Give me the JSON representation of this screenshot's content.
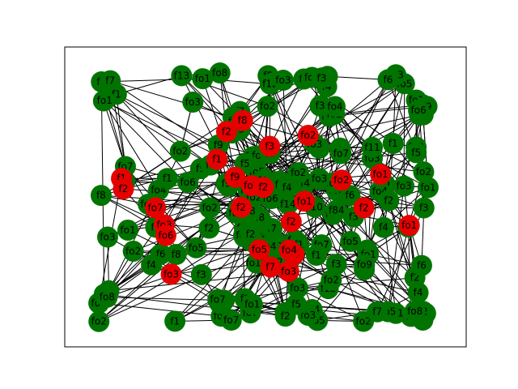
{
  "graph": {
    "node_colors": {
      "green": "#007300",
      "red": "#e60000"
    },
    "edge_color": "#000000",
    "frame_color": "#000000",
    "red_labels": [
      "f2",
      "fo2",
      "fo3",
      "f1",
      "f3",
      "fo2",
      "f2",
      "f7",
      "fo1",
      "f4",
      "fo6",
      "f2",
      "fo1",
      "f9",
      "fo3",
      "f2",
      "fo2",
      "fo5",
      "f1",
      "fo7",
      "fo4",
      "f2",
      "fo3",
      "f8",
      "f2",
      "fo1"
    ],
    "green_labels": [
      "f4",
      "f6",
      "f23",
      "f8",
      "f10",
      "fo7",
      "f1",
      "fo2",
      "f7",
      "fo5",
      "fo2",
      "fo1",
      "f24",
      "f13",
      "fo3",
      "fo8",
      "f9",
      "fo7",
      "f2",
      "f1",
      "f7",
      "fo6",
      "fo3",
      "f2",
      "f3",
      "fo2",
      "f1",
      "fo4",
      "f4",
      "f5",
      "fo5",
      "f9",
      "fo7",
      "fo2",
      "fo1",
      "f2",
      "f5",
      "f1",
      "fo3",
      "f2",
      "f7",
      "f12",
      "f14",
      "fo2",
      "fo6",
      "fo4",
      "f7",
      "fo1",
      "fo3",
      "f8",
      "f2",
      "fo3",
      "fo1",
      "f1",
      "f5",
      "f2",
      "f3",
      "f4",
      "f9",
      "fo5",
      "fo3",
      "f6",
      "fo2",
      "f7",
      "f3",
      "fo4",
      "fo1",
      "fo2",
      "fo6",
      "fo7",
      "f11",
      "f12",
      "f3",
      "f1",
      "fo2",
      "f28",
      "fo1",
      "f3",
      "f5",
      "fo5",
      "f3",
      "f4",
      "fo4",
      "fo5",
      "f2",
      "f4",
      "fo13",
      "fo1",
      "fo2",
      "fo5",
      "f7",
      "f84",
      "fo5",
      "fo8",
      "f1",
      "fo2",
      "f6",
      "fo8",
      "fo4",
      "f2",
      "fo1",
      "f3",
      "fo7",
      "f8",
      "fo2",
      "f5",
      "f4",
      "fo9",
      "f1",
      "fo2",
      "fo7",
      "f13",
      "f2",
      "fo3",
      "fo1",
      "f5",
      "fo8",
      "f9",
      "f3",
      "fo2",
      "fo6",
      "f14",
      "fo3",
      "f2",
      "f1",
      "fo7",
      "f4",
      "f8",
      "fo2",
      "fo1",
      "f7",
      "f3",
      "fo5",
      "fo4",
      "f2",
      "fo3",
      "f6",
      "fo1",
      "f9",
      "f5",
      "fo2",
      "f1",
      "fo6",
      "f2",
      "fo8",
      "f4",
      "fo3",
      "f7",
      "fo1",
      "f3",
      "fo2",
      "f5",
      "fo4",
      "f1",
      "fo7",
      "f2",
      "fo5",
      "f8",
      "fo3",
      "f6",
      "fo1",
      "f4",
      "fo2",
      "f9",
      "fo6",
      "f3",
      "f1",
      "fo2",
      "f7",
      "fo4",
      "f2",
      "fo1",
      "f5",
      "fo3"
    ]
  }
}
